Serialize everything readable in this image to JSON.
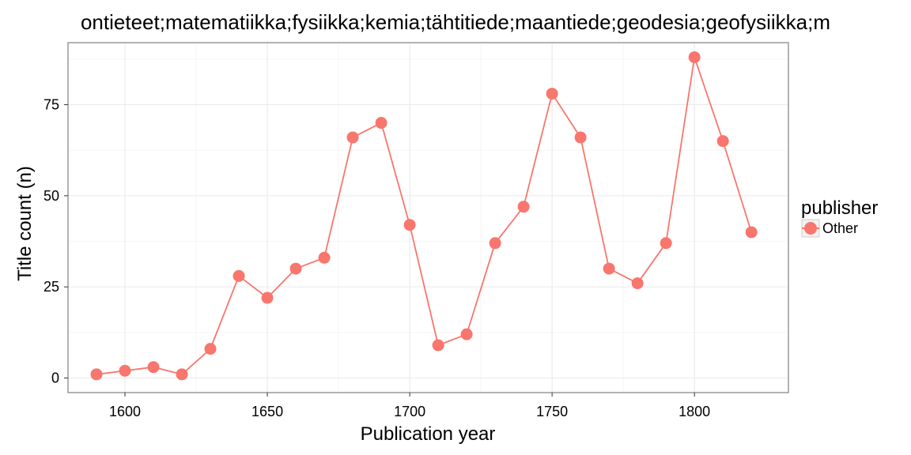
{
  "chart_data": {
    "type": "line",
    "title": "ontieteet;matematiikka;fysiikka;kemia;tähtitiede;maantiede;geodesia;geofysiikka;m",
    "xlabel": "Publication year",
    "ylabel": "Title count (n)",
    "x": [
      1590,
      1600,
      1610,
      1620,
      1630,
      1640,
      1650,
      1660,
      1670,
      1680,
      1690,
      1700,
      1710,
      1720,
      1730,
      1740,
      1750,
      1760,
      1770,
      1780,
      1790,
      1800,
      1810,
      1820
    ],
    "series": [
      {
        "name": "Other",
        "values": [
          1,
          2,
          3,
          1,
          8,
          28,
          22,
          30,
          33,
          66,
          70,
          42,
          9,
          12,
          37,
          47,
          78,
          66,
          30,
          26,
          37,
          88,
          65,
          40
        ]
      }
    ],
    "xlim": [
      1580,
      1833
    ],
    "ylim": [
      -4,
      92
    ],
    "x_ticks": [
      {
        "value": 1600,
        "label": "1600"
      },
      {
        "value": 1650,
        "label": "1650"
      },
      {
        "value": 1700,
        "label": "1700"
      },
      {
        "value": 1750,
        "label": "1750"
      },
      {
        "value": 1800,
        "label": "1800"
      }
    ],
    "y_ticks": [
      {
        "value": 0,
        "label": "0"
      },
      {
        "value": 25,
        "label": "25"
      },
      {
        "value": 50,
        "label": "50"
      },
      {
        "value": 75,
        "label": "75"
      }
    ],
    "grid": true,
    "legend": {
      "title": "publisher",
      "placement": "right",
      "entries": [
        "Other"
      ]
    },
    "colors": {
      "series": "#f8766d",
      "grid_major": "#ebebeb",
      "grid_minor": "#f5f5f5",
      "panel_border": "#7f7f7f",
      "axis_tick": "#333333"
    }
  }
}
